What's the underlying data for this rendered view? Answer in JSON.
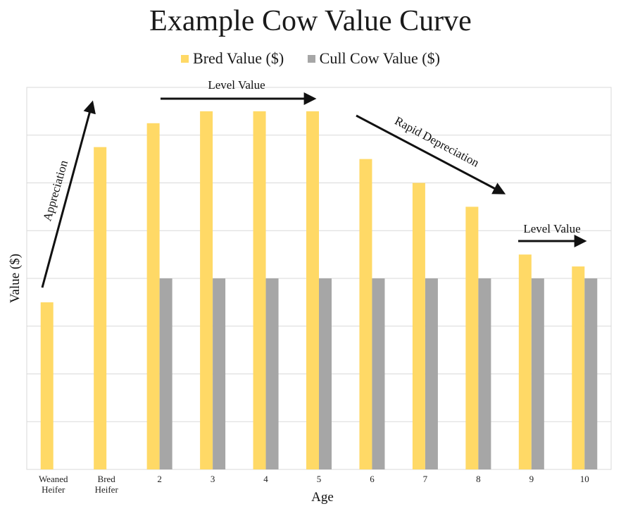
{
  "chart_data": {
    "type": "bar",
    "title": "Example Cow Value Curve",
    "xlabel": "Age",
    "ylabel": "Value ($)",
    "ylim": [
      0,
      8
    ],
    "grid": true,
    "legend_position": "top",
    "categories": [
      "Weaned Heifer",
      "Bred Heifer",
      "2",
      "3",
      "4",
      "5",
      "6",
      "7",
      "8",
      "9",
      "10"
    ],
    "series": [
      {
        "name": "Bred Value ($)",
        "color": "#FFD966",
        "values": [
          3.5,
          6.75,
          7.25,
          7.5,
          7.5,
          7.5,
          6.5,
          6.0,
          5.5,
          4.5,
          4.25
        ]
      },
      {
        "name": "Cull Cow Value ($)",
        "color": "#A6A6A6",
        "values": [
          null,
          null,
          4.0,
          4.0,
          4.0,
          4.0,
          4.0,
          4.0,
          4.0,
          4.0,
          4.0
        ]
      }
    ],
    "annotations": [
      {
        "text": "Appreciation"
      },
      {
        "text": "Level Value"
      },
      {
        "text": "Rapid Depreciation"
      },
      {
        "text": "Level Value"
      }
    ]
  }
}
